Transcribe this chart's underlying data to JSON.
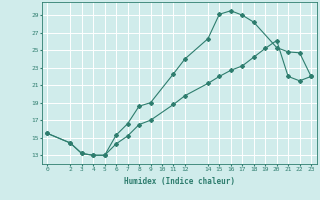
{
  "xlabel": "Humidex (Indice chaleur)",
  "line_color": "#2e7d6e",
  "bg_color": "#d0eceb",
  "grid_color": "#ffffff",
  "xlim": [
    -0.5,
    23.5
  ],
  "ylim": [
    12.0,
    30.5
  ],
  "xticks": [
    0,
    2,
    3,
    4,
    5,
    6,
    7,
    8,
    9,
    10,
    11,
    12,
    14,
    15,
    16,
    17,
    18,
    19,
    20,
    21,
    22,
    23
  ],
  "yticks": [
    13,
    15,
    17,
    19,
    21,
    23,
    25,
    27,
    29
  ],
  "curve1_x": [
    0,
    2,
    3,
    4,
    5,
    6,
    7,
    8,
    9,
    11,
    12,
    14,
    15,
    16,
    17,
    18,
    20,
    21,
    22,
    23
  ],
  "curve1_y": [
    15.5,
    14.4,
    13.2,
    13.0,
    13.0,
    15.3,
    16.6,
    18.6,
    19.0,
    22.3,
    24.0,
    26.3,
    29.1,
    29.5,
    29.0,
    28.2,
    25.3,
    24.8,
    24.7,
    22.0
  ],
  "curve2_x": [
    0,
    2,
    3,
    4,
    5,
    6,
    7,
    8,
    9,
    11,
    12,
    14,
    15,
    16,
    17,
    18,
    19,
    20,
    21,
    22,
    23
  ],
  "curve2_y": [
    15.5,
    14.4,
    13.2,
    13.0,
    13.0,
    14.3,
    15.2,
    16.5,
    17.0,
    18.8,
    19.8,
    21.2,
    22.0,
    22.7,
    23.2,
    24.2,
    25.2,
    26.1,
    22.0,
    21.5,
    22.0
  ]
}
